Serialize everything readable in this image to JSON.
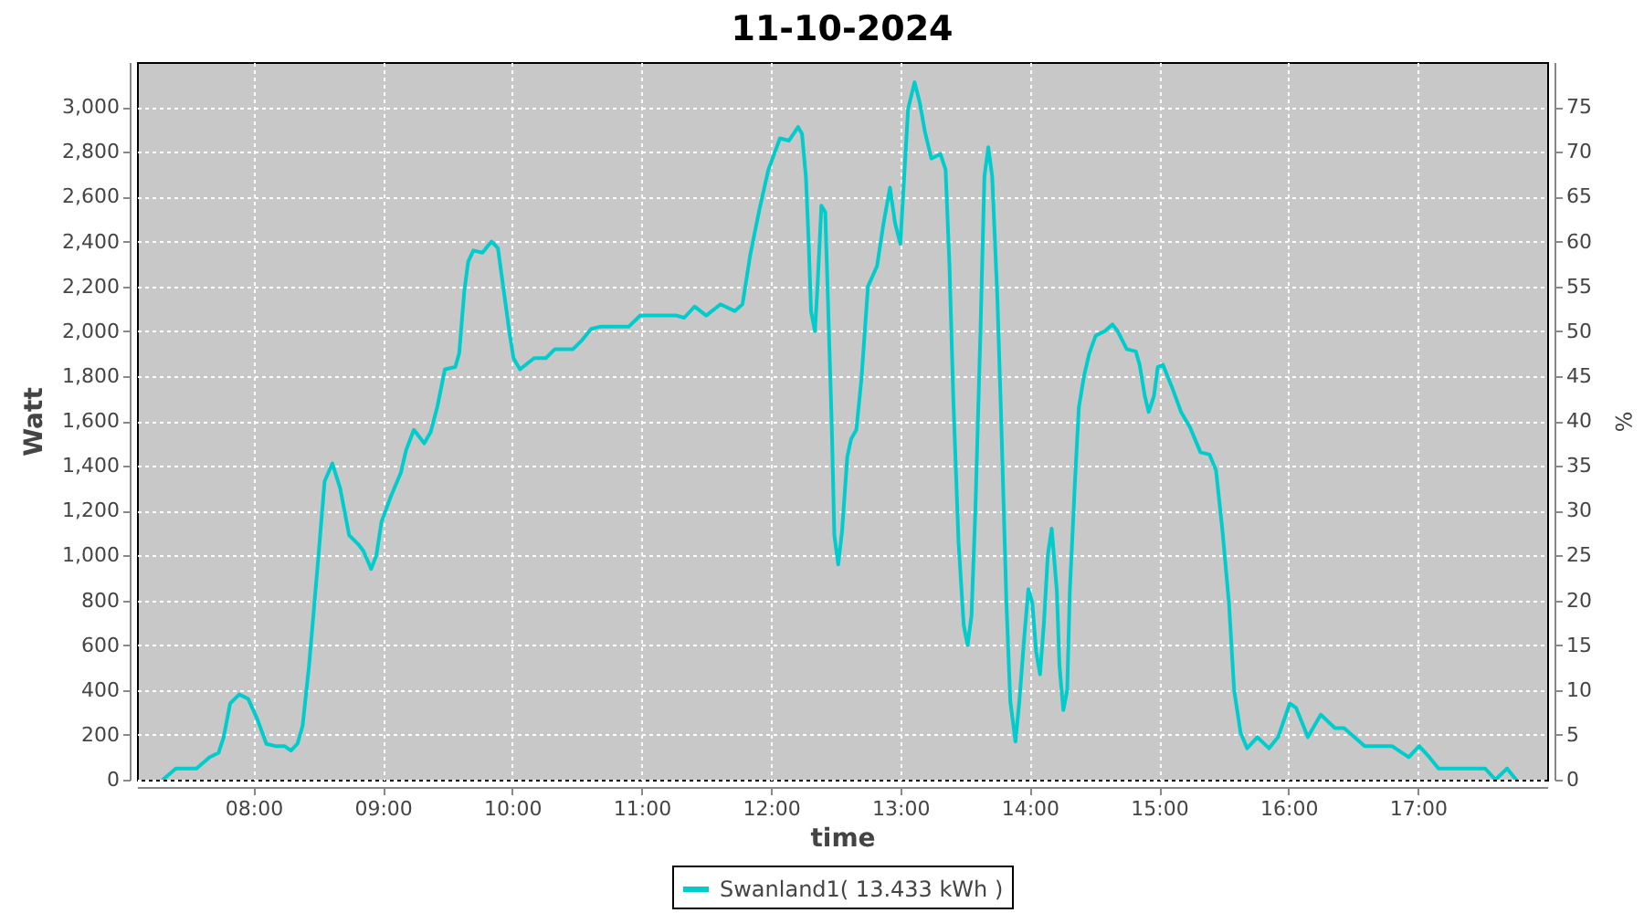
{
  "chart_data": {
    "type": "line",
    "title": "11-10-2024",
    "xlabel": "time",
    "ylabel": "Watt",
    "y2label": "%",
    "x": [
      7.3,
      7.4,
      7.49,
      7.56,
      7.66,
      7.73,
      7.77,
      7.82,
      7.89,
      7.96,
      8.03,
      8.1,
      8.17,
      8.24,
      8.29,
      8.34,
      8.38,
      8.43,
      8.5,
      8.55,
      8.61,
      8.67,
      8.74,
      8.81,
      8.85,
      8.91,
      8.95,
      8.99,
      9.06,
      9.14,
      9.18,
      9.24,
      9.32,
      9.37,
      9.42,
      9.48,
      9.56,
      9.59,
      9.63,
      9.66,
      9.7,
      9.77,
      9.84,
      9.89,
      9.93,
      9.98,
      10.01,
      10.06,
      10.17,
      10.26,
      10.33,
      10.4,
      10.47,
      10.54,
      10.61,
      10.68,
      10.78,
      10.9,
      10.99,
      11.08,
      11.27,
      11.33,
      11.41,
      11.5,
      11.61,
      11.72,
      11.78,
      11.84,
      11.91,
      11.98,
      12.07,
      12.14,
      12.21,
      12.24,
      12.27,
      12.29,
      12.31,
      12.34,
      12.36,
      12.39,
      12.42,
      12.44,
      12.47,
      12.49,
      12.52,
      12.55,
      12.59,
      12.62,
      12.66,
      12.7,
      12.75,
      12.82,
      12.87,
      12.92,
      12.96,
      13.0,
      13.03,
      13.06,
      13.11,
      13.15,
      13.19,
      13.24,
      13.31,
      13.35,
      13.38,
      13.41,
      13.45,
      13.49,
      13.52,
      13.55,
      13.58,
      13.62,
      13.65,
      13.68,
      13.71,
      13.75,
      13.78,
      13.82,
      13.85,
      13.89,
      13.92,
      13.96,
      13.99,
      14.02,
      14.05,
      14.08,
      14.11,
      14.14,
      14.17,
      14.21,
      14.23,
      14.26,
      14.29,
      14.31,
      14.35,
      14.38,
      14.42,
      14.46,
      14.51,
      14.58,
      14.64,
      14.68,
      14.75,
      14.82,
      14.85,
      14.89,
      14.92,
      14.96,
      14.99,
      15.03,
      15.1,
      15.17,
      15.24,
      15.32,
      15.39,
      15.44,
      15.49,
      15.54,
      15.58,
      15.63,
      15.68,
      15.76,
      15.85,
      15.92,
      16.01,
      16.06,
      16.15,
      16.25,
      16.36,
      16.43,
      16.59,
      16.8,
      16.93,
      17.01,
      17.09,
      17.16,
      17.26,
      17.52,
      17.6,
      17.69,
      17.76
    ],
    "series": [
      {
        "name": "Swanland1( 13.433 kWh )",
        "color": "#00cccc",
        "values": [
          0,
          50,
          50,
          50,
          100,
          120,
          190,
          340,
          380,
          360,
          270,
          160,
          150,
          150,
          130,
          160,
          240,
          510,
          980,
          1330,
          1410,
          1300,
          1090,
          1050,
          1020,
          940,
          1000,
          1150,
          1260,
          1370,
          1470,
          1560,
          1500,
          1550,
          1660,
          1830,
          1840,
          1900,
          2180,
          2310,
          2360,
          2350,
          2400,
          2370,
          2200,
          1990,
          1880,
          1830,
          1880,
          1880,
          1920,
          1920,
          1920,
          1960,
          2010,
          2020,
          2020,
          2020,
          2070,
          2070,
          2070,
          2060,
          2110,
          2070,
          2120,
          2090,
          2120,
          2340,
          2540,
          2720,
          2860,
          2850,
          2910,
          2880,
          2690,
          2420,
          2090,
          2000,
          2200,
          2560,
          2530,
          2150,
          1580,
          1090,
          960,
          1110,
          1440,
          1520,
          1560,
          1790,
          2200,
          2290,
          2480,
          2640,
          2480,
          2390,
          2690,
          2990,
          3110,
          3020,
          2890,
          2770,
          2790,
          2720,
          2290,
          1690,
          1060,
          690,
          600,
          730,
          1200,
          2010,
          2690,
          2820,
          2690,
          2150,
          1600,
          790,
          350,
          170,
          350,
          650,
          850,
          790,
          570,
          470,
          700,
          1000,
          1120,
          840,
          510,
          310,
          400,
          840,
          1330,
          1660,
          1800,
          1900,
          1980,
          2000,
          2030,
          2000,
          1920,
          1910,
          1850,
          1710,
          1640,
          1710,
          1840,
          1850,
          1750,
          1640,
          1570,
          1460,
          1450,
          1380,
          1110,
          790,
          400,
          210,
          140,
          190,
          140,
          190,
          340,
          320,
          190,
          290,
          230,
          230,
          150,
          150,
          100,
          150,
          100,
          50,
          50,
          50,
          0,
          50,
          0
        ]
      }
    ],
    "xlim": [
      7.1,
      18.0
    ],
    "xticks": [
      {
        "value": 8,
        "label": "08:00"
      },
      {
        "value": 9,
        "label": "09:00"
      },
      {
        "value": 10,
        "label": "10:00"
      },
      {
        "value": 11,
        "label": "11:00"
      },
      {
        "value": 12,
        "label": "12:00"
      },
      {
        "value": 13,
        "label": "13:00"
      },
      {
        "value": 14,
        "label": "14:00"
      },
      {
        "value": 15,
        "label": "15:00"
      },
      {
        "value": 16,
        "label": "16:00"
      },
      {
        "value": 17,
        "label": "17:00"
      }
    ],
    "ylim": [
      0,
      3200
    ],
    "yticks": [
      0,
      200,
      400,
      600,
      800,
      {
        "value": 1000,
        "label": "1,000"
      },
      {
        "value": 1200,
        "label": "1,200"
      },
      {
        "value": 1400,
        "label": "1,400"
      },
      {
        "value": 1600,
        "label": "1,600"
      },
      {
        "value": 1800,
        "label": "1,800"
      },
      {
        "value": 2000,
        "label": "2,000"
      },
      {
        "value": 2200,
        "label": "2,200"
      },
      {
        "value": 2400,
        "label": "2,400"
      },
      {
        "value": 2600,
        "label": "2,600"
      },
      {
        "value": 2800,
        "label": "2,800"
      },
      {
        "value": 3000,
        "label": "3,000"
      }
    ],
    "y2lim": [
      0,
      80
    ],
    "y2ticks": [
      0,
      5,
      10,
      15,
      20,
      25,
      30,
      35,
      40,
      45,
      50,
      55,
      60,
      65,
      70,
      75
    ],
    "grid": true,
    "legend": "bottom"
  }
}
